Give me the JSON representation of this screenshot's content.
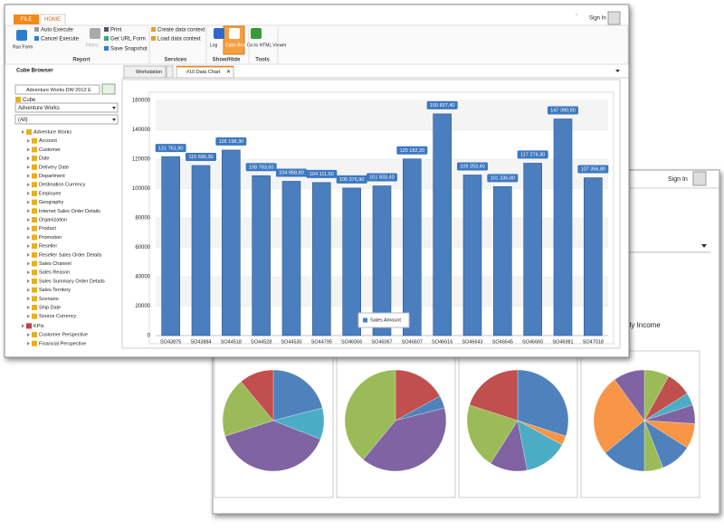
{
  "window": {
    "file_tab": "FILE",
    "home_tab": "HOME",
    "sign_in": "Sign In"
  },
  "ribbon": {
    "buttons": [
      "Run Form",
      "Auto Execute",
      "Cancel Execute",
      "Filters",
      "Print",
      "Get URL Form",
      "Save Snapshot",
      "Create data context",
      "Load data context",
      "Log",
      "Cube Browser",
      "Go to HTML Viewer"
    ],
    "groups": [
      "Report",
      "Services",
      "Show/Hide",
      "Tools"
    ]
  },
  "sidebar": {
    "title": "Cube Browser",
    "source": "Adventure Works DW 2012 E",
    "cube_label": "Cube",
    "cube": "Adventure Works",
    "filter": "(All)",
    "tree": [
      "Adventure Works",
      "Account",
      "Customer",
      "Date",
      "Delivery Date",
      "Department",
      "Destination Currency",
      "Employee",
      "Geography",
      "Internet Sales Order Details",
      "Organization",
      "Product",
      "Promotion",
      "Reseller",
      "Reseller Sales Order Details",
      "Sales Channel",
      "Sales Reason",
      "Sales Summary Order Details",
      "Sales Territory",
      "Scenario",
      "Ship Date",
      "Source Currency",
      "KPIs",
      "Customer Perspective",
      "Financial Perspective"
    ]
  },
  "tabs": [
    "Workstation",
    "#10 Data Chart"
  ],
  "back_window": {
    "sign_in": "Sign In",
    "pie_title": "early Income"
  },
  "chart_data": [
    {
      "type": "bar",
      "categories": [
        "SO43875",
        "SO43884",
        "SO44518",
        "SO44528",
        "SO44530",
        "SO44795",
        "SO46066",
        "SO46067",
        "SO46607",
        "SO46616",
        "SO46643",
        "SO46645",
        "SO46660",
        "SO46981",
        "SO47018"
      ],
      "series": [
        {
          "name": "Sales Amount",
          "color": "#4a7ebf",
          "values": [
            121761.9,
            115696.3,
            126198.3,
            108783.6,
            104958.8,
            104111.5,
            100376.9,
            101833.4,
            120182.2,
            150837.4,
            109253.4,
            101336.8,
            117274.3,
            147390.9,
            107356.8
          ],
          "value_labels": [
            "121 761,90",
            "115 696,30",
            "126 198,30",
            "108 783,60",
            "104 958,80",
            "104 111,50",
            "100 376,90",
            "101 833,40",
            "120 182,20",
            "150 837,40",
            "109 253,40",
            "101 336,80",
            "117 274,30",
            "147 390,90",
            "107 356,80"
          ]
        }
      ],
      "ylim": [
        0,
        160000
      ],
      "yticks": [
        0,
        20000,
        40000,
        60000,
        80000,
        100000,
        120000,
        140000,
        160000
      ],
      "grid": true,
      "legend": "bottom"
    },
    {
      "type": "pie",
      "categories": [
        null,
        null,
        null,
        null,
        null
      ],
      "values": [
        21,
        10,
        39,
        19,
        11
      ],
      "colors": [
        "#4f81bd",
        "#4bacc6",
        "#8064a2",
        "#9bbb59",
        "#c0504d"
      ]
    },
    {
      "type": "pie",
      "categories": [
        null,
        null,
        null,
        null
      ],
      "values": [
        17,
        4,
        40,
        39
      ],
      "colors": [
        "#c0504d",
        "#4f81bd",
        "#8064a2",
        "#9bbb59"
      ]
    },
    {
      "type": "pie",
      "categories": [
        null,
        null,
        null,
        null,
        null,
        null
      ],
      "values": [
        30,
        3,
        14,
        12,
        21,
        20
      ],
      "colors": [
        "#4f81bd",
        "#f79646",
        "#4bacc6",
        "#8064a2",
        "#9bbb59",
        "#c0504d"
      ]
    },
    {
      "type": "pie",
      "categories": [
        null,
        null,
        null,
        null,
        null,
        null,
        null,
        null,
        null,
        null
      ],
      "values": [
        8,
        8,
        4,
        6,
        8,
        10,
        6,
        14,
        26,
        10
      ],
      "colors": [
        "#9bbb59",
        "#c0504d",
        "#4bacc6",
        "#8064a2",
        "#f79646",
        "#4f81bd",
        "#9bbb59",
        "#4f81bd",
        "#f79646",
        "#8064a2"
      ]
    }
  ]
}
